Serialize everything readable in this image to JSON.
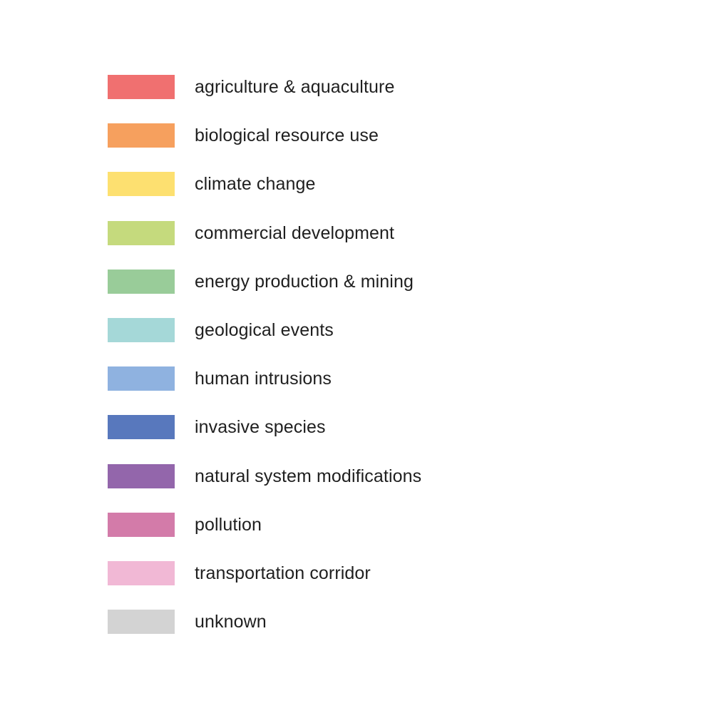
{
  "legend": {
    "items": [
      {
        "label": "agriculture & aquaculture",
        "color": "#f07070"
      },
      {
        "label": "biological resource use",
        "color": "#f6a05e"
      },
      {
        "label": "climate change",
        "color": "#fde070"
      },
      {
        "label": "commercial development",
        "color": "#c5da7d"
      },
      {
        "label": "energy production & mining",
        "color": "#99cc99"
      },
      {
        "label": "geological events",
        "color": "#a5d8d8"
      },
      {
        "label": "human intrusions",
        "color": "#8fb2e0"
      },
      {
        "label": "invasive species",
        "color": "#5878bd"
      },
      {
        "label": "natural system modifications",
        "color": "#9366ab"
      },
      {
        "label": "pollution",
        "color": "#d37ba9"
      },
      {
        "label": "transportation corridor",
        "color": "#f1b8d5"
      },
      {
        "label": "unknown",
        "color": "#d3d3d3"
      }
    ]
  }
}
